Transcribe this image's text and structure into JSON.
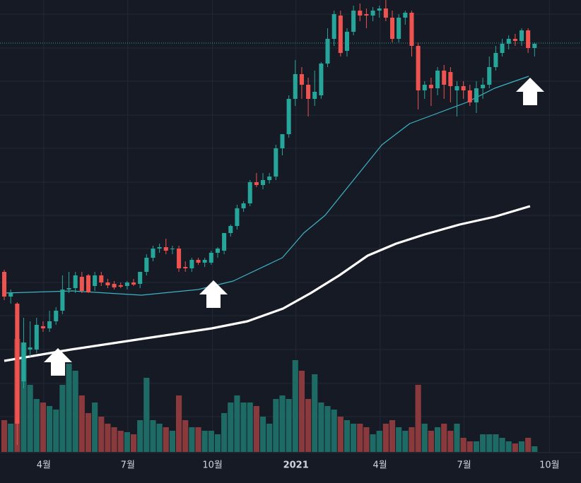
{
  "chart_data": {
    "type": "candlestick",
    "up_color": "#26a69a",
    "down_color": "#ef5350",
    "volume_up_color": "#1e6a64",
    "volume_down_color": "#8a3a3c",
    "xlim": [
      -0.66,
      89.18
    ],
    "ylim": [
      0,
      640
    ],
    "xticks": [
      {
        "value": 6.1,
        "label": "4월"
      },
      {
        "value": 19.1,
        "label": "7월"
      },
      {
        "value": 32.2,
        "label": "10월"
      },
      {
        "value": 45.1,
        "label": "2021"
      },
      {
        "value": 58.1,
        "label": "4월"
      },
      {
        "value": 71.1,
        "label": "7월"
      },
      {
        "value": 84.3,
        "label": "10월"
      }
    ],
    "grid": true,
    "price_line": 579,
    "open": [
      255,
      220,
      210,
      100,
      145,
      145,
      178,
      175,
      185,
      200,
      230,
      232,
      248,
      250,
      235,
      250,
      240,
      238,
      236,
      235,
      240,
      238,
      255,
      275,
      288,
      290,
      287,
      288,
      262,
      260,
      272,
      268,
      268,
      282,
      285,
      310,
      320,
      345,
      352,
      382,
      378,
      385,
      390,
      430,
      450,
      500,
      535,
      520,
      500,
      505,
      550,
      585,
      618,
      568,
      595,
      625,
      620,
      618,
      625,
      628,
      615,
      585,
      615,
      622,
      575,
      512,
      520,
      515,
      540,
      538,
      512,
      518,
      512,
      495,
      515,
      520,
      545,
      565,
      578,
      585,
      582,
      597,
      572
    ],
    "high": [
      258,
      230,
      212,
      190,
      185,
      190,
      185,
      200,
      205,
      250,
      255,
      255,
      255,
      252,
      255,
      255,
      245,
      242,
      240,
      242,
      245,
      250,
      280,
      292,
      295,
      302,
      292,
      292,
      270,
      275,
      275,
      275,
      285,
      290,
      310,
      322,
      350,
      355,
      385,
      395,
      395,
      395,
      435,
      450,
      505,
      555,
      545,
      530,
      540,
      552,
      600,
      625,
      625,
      600,
      632,
      635,
      628,
      630,
      632,
      640,
      625,
      620,
      625,
      625,
      580,
      525,
      530,
      545,
      548,
      545,
      525,
      525,
      520,
      525,
      530,
      560,
      575,
      585,
      590,
      592,
      600,
      600,
      580
    ],
    "low": [
      215,
      210,
      10,
      90,
      135,
      140,
      170,
      170,
      180,
      195,
      225,
      225,
      225,
      225,
      228,
      235,
      232,
      230,
      232,
      230,
      235,
      232,
      250,
      270,
      282,
      280,
      280,
      255,
      255,
      255,
      265,
      262,
      265,
      275,
      280,
      305,
      315,
      340,
      348,
      375,
      372,
      380,
      385,
      420,
      445,
      490,
      500,
      475,
      490,
      500,
      545,
      575,
      560,
      560,
      590,
      610,
      600,
      610,
      615,
      610,
      580,
      580,
      605,
      560,
      485,
      500,
      490,
      505,
      500,
      495,
      475,
      500,
      490,
      480,
      500,
      515,
      540,
      560,
      570,
      575,
      575,
      565,
      560
    ],
    "close": [
      220,
      225,
      40,
      155,
      148,
      180,
      175,
      185,
      200,
      230,
      232,
      250,
      228,
      226,
      250,
      240,
      236,
      233,
      234,
      240,
      237,
      255,
      275,
      288,
      290,
      285,
      288,
      260,
      260,
      272,
      268,
      272,
      282,
      288,
      310,
      320,
      345,
      352,
      382,
      378,
      385,
      390,
      430,
      450,
      500,
      535,
      520,
      500,
      510,
      550,
      585,
      620,
      565,
      595,
      625,
      618,
      618,
      625,
      628,
      615,
      585,
      615,
      622,
      575,
      512,
      520,
      515,
      540,
      520,
      518,
      518,
      512,
      495,
      515,
      520,
      545,
      565,
      578,
      585,
      582,
      597,
      572,
      578
    ],
    "volume": [
      45,
      40,
      160,
      155,
      95,
      75,
      70,
      65,
      60,
      95,
      125,
      115,
      80,
      55,
      70,
      50,
      40,
      35,
      30,
      28,
      25,
      45,
      105,
      45,
      40,
      35,
      30,
      80,
      45,
      35,
      35,
      30,
      30,
      25,
      55,
      70,
      80,
      70,
      70,
      65,
      50,
      40,
      75,
      80,
      75,
      130,
      115,
      75,
      110,
      70,
      65,
      60,
      50,
      45,
      40,
      40,
      35,
      25,
      30,
      40,
      45,
      35,
      30,
      35,
      95,
      40,
      30,
      35,
      40,
      30,
      40,
      20,
      15,
      15,
      25,
      25,
      25,
      20,
      15,
      12,
      15,
      20,
      8
    ],
    "lines": [
      {
        "color": "#3cb4c4",
        "width": 1.2,
        "x": [
          0,
          10.5,
          21.2,
          30,
          35.4,
          43,
          46.3,
          49.6,
          54,
          58.4,
          62.7,
          67.1,
          71.5,
          75.8,
          81.1
        ],
        "values": [
          225,
          228,
          222,
          230,
          242,
          275,
          310,
          335,
          385,
          435,
          465,
          480,
          495,
          515,
          532
        ]
      },
      {
        "color": "#ffffff",
        "width": 3.2,
        "x": [
          0,
          10.3,
          21.2,
          32.1,
          37.6,
          43.1,
          47.4,
          51.8,
          56.2,
          60.6,
          65,
          70.4,
          75.8,
          81.3
        ],
        "values": [
          129,
          145,
          160,
          175,
          185,
          203,
          225,
          250,
          278,
          295,
          308,
          322,
          333,
          348
        ]
      }
    ]
  }
}
